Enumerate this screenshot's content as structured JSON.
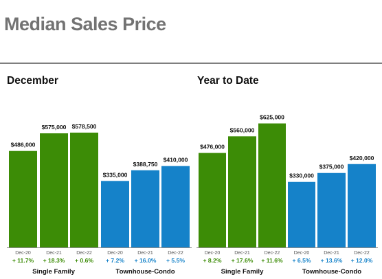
{
  "page": {
    "title": "Median Sales Price"
  },
  "colors": {
    "single_family": "#3c8c06",
    "townhouse_condo": "#1582c9",
    "baseline": "#8c8c8c"
  },
  "chart_data": [
    {
      "type": "bar",
      "title": "December",
      "groups": [
        {
          "name": "Single Family",
          "color": "#3c8c06",
          "categories": [
            "Dec-20",
            "Dec-21",
            "Dec-22"
          ],
          "values": [
            486000,
            575000,
            578500
          ],
          "value_labels": [
            "$486,000",
            "$575,000",
            "$578,500"
          ],
          "changes": [
            "+ 11.7%",
            "+ 18.3%",
            "+ 0.6%"
          ]
        },
        {
          "name": "Townhouse-Condo",
          "color": "#1582c9",
          "categories": [
            "Dec-20",
            "Dec-21",
            "Dec-22"
          ],
          "values": [
            335000,
            388750,
            410000
          ],
          "value_labels": [
            "$335,000",
            "$388,750",
            "$410,000"
          ],
          "changes": [
            "+ 7.2%",
            "+ 16.0%",
            "+ 5.5%"
          ]
        }
      ]
    },
    {
      "type": "bar",
      "title": "Year to Date",
      "groups": [
        {
          "name": "Single Family",
          "color": "#3c8c06",
          "categories": [
            "Dec-20",
            "Dec-21",
            "Dec-22"
          ],
          "values": [
            476000,
            560000,
            625000
          ],
          "value_labels": [
            "$476,000",
            "$560,000",
            "$625,000"
          ],
          "changes": [
            "+ 8.2%",
            "+ 17.6%",
            "+ 11.6%"
          ]
        },
        {
          "name": "Townhouse-Condo",
          "color": "#1582c9",
          "categories": [
            "Dec-20",
            "Dec-21",
            "Dec-22"
          ],
          "values": [
            330000,
            375000,
            420000
          ],
          "value_labels": [
            "$330,000",
            "$375,000",
            "$420,000"
          ],
          "changes": [
            "+ 6.5%",
            "+ 13.6%",
            "+ 12.0%"
          ]
        }
      ]
    }
  ]
}
